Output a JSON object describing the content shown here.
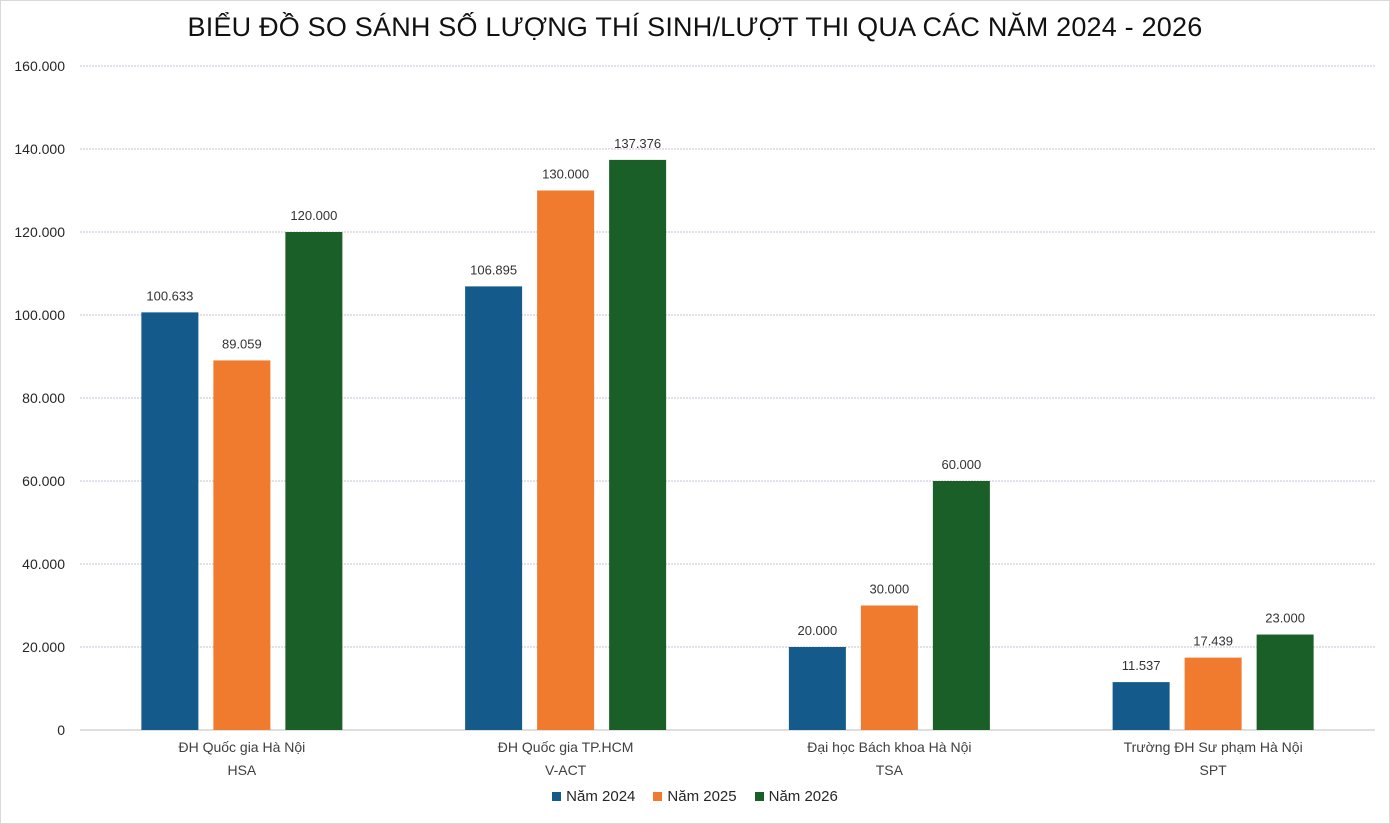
{
  "chart_data": {
    "type": "bar",
    "title": "BIỂU ĐỒ SO SÁNH SỐ LƯỢNG THÍ SINH/LƯỢT THI QUA CÁC NĂM 2024 - 2026",
    "categories": [
      [
        "ĐH Quốc gia Hà Nội",
        "HSA"
      ],
      [
        "ĐH Quốc gia TP.HCM",
        "V-ACT"
      ],
      [
        "Đại học Bách khoa Hà Nội",
        "TSA"
      ],
      [
        "Trường ĐH Sư phạm Hà Nội",
        "SPT"
      ]
    ],
    "series": [
      {
        "name": "Năm 2024",
        "color": "#145a8a",
        "values": [
          100633,
          106895,
          20000,
          11537
        ],
        "labels": [
          "100.633",
          "106.895",
          "20.000",
          "11.537"
        ]
      },
      {
        "name": "Năm 2025",
        "color": "#f07a2e",
        "values": [
          89059,
          130000,
          30000,
          17439
        ],
        "labels": [
          "89.059",
          "130.000",
          "30.000",
          "17.439"
        ]
      },
      {
        "name": "Năm 2026",
        "color": "#1a5e28",
        "values": [
          120000,
          137376,
          60000,
          23000
        ],
        "labels": [
          "120.000",
          "137.376",
          "60.000",
          "23.000"
        ]
      }
    ],
    "ylim": [
      0,
      160000
    ],
    "yticks": [
      0,
      20000,
      40000,
      60000,
      80000,
      100000,
      120000,
      140000,
      160000
    ],
    "ytick_labels": [
      "0",
      "20.000",
      "40.000",
      "60.000",
      "80.000",
      "100.000",
      "120.000",
      "140.000",
      "160.000"
    ],
    "xlabel": "",
    "ylabel": "",
    "grid": true,
    "legend_position": "bottom"
  }
}
